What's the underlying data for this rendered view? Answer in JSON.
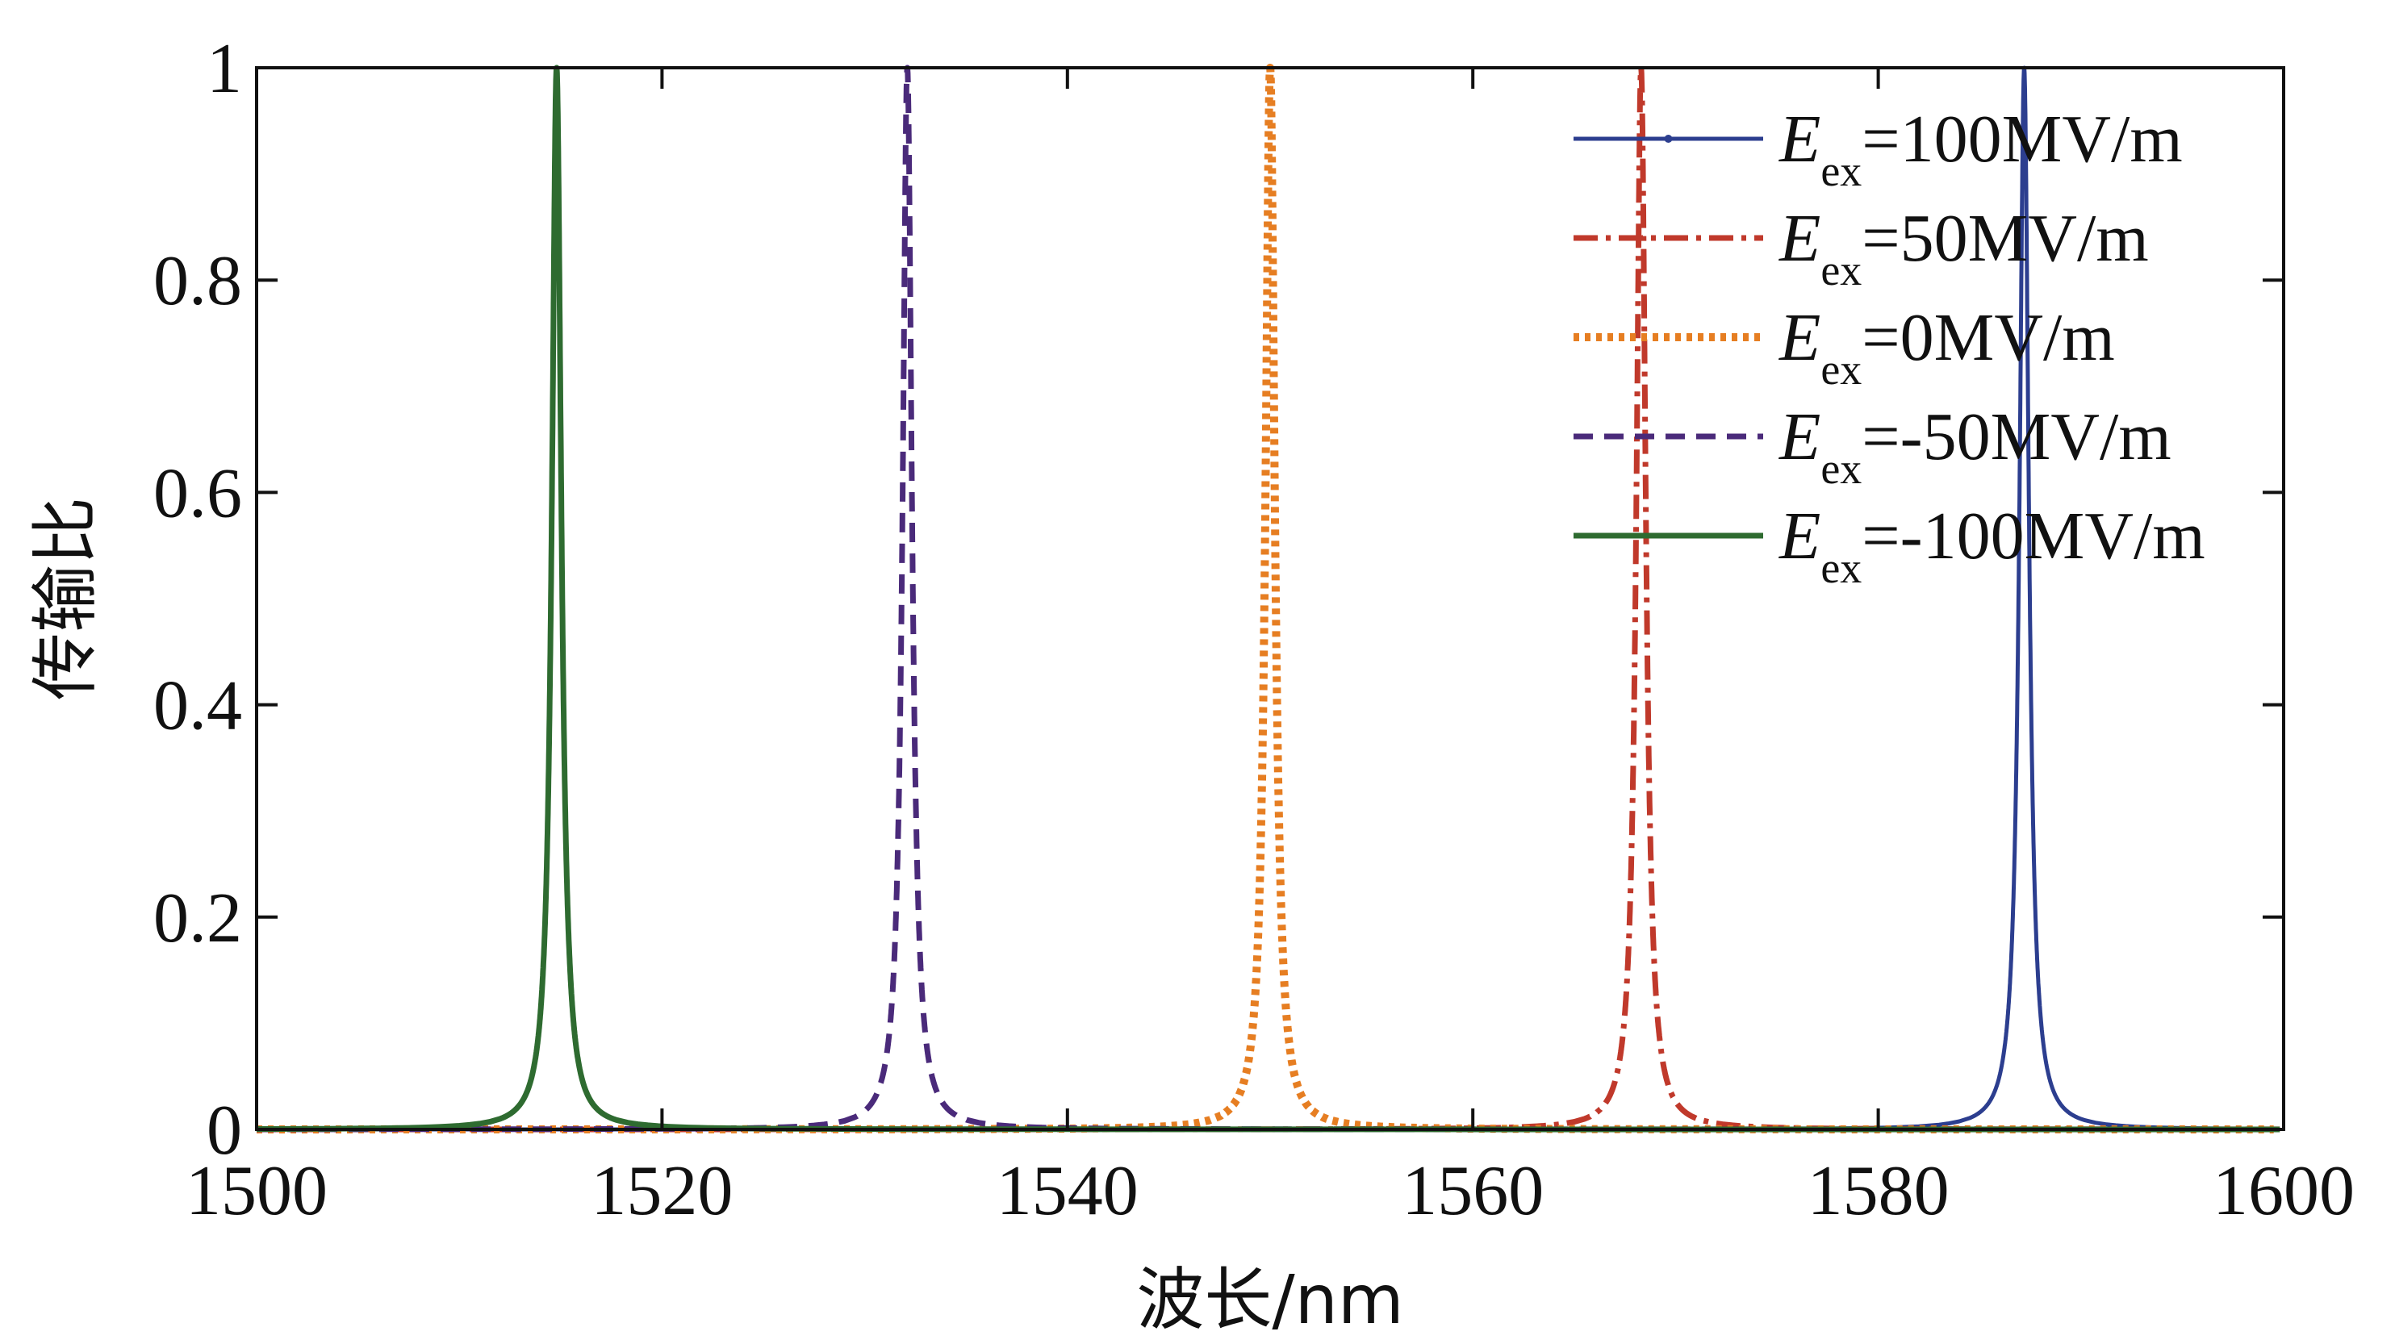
{
  "chart_data": {
    "type": "line",
    "title": "",
    "xlabel": "波长/nm",
    "ylabel": "传输比",
    "xlim": [
      1500,
      1600
    ],
    "ylim": [
      0,
      1
    ],
    "xticks": [
      1500,
      1520,
      1540,
      1560,
      1580,
      1600
    ],
    "xtick_labels": [
      "1500",
      "1520",
      "1540",
      "1560",
      "1580",
      "1600"
    ],
    "yticks": [
      0,
      0.2,
      0.4,
      0.6,
      0.8,
      1
    ],
    "ytick_labels": [
      "0",
      "0.2",
      "0.4",
      "0.6",
      "0.8",
      "1"
    ],
    "grid": false,
    "legend_position": "top-right",
    "legend_symbol": "E",
    "legend_subscript": "ex",
    "series": [
      {
        "name": "=100MV/m",
        "peak_x": 1587.2,
        "peak_y": 1.0,
        "color": "#2c3e8f",
        "style": "solid-marker"
      },
      {
        "name": "=50MV/m",
        "peak_x": 1568.3,
        "peak_y": 1.0,
        "color": "#c0392b",
        "style": "dash-dot"
      },
      {
        "name": "=0MV/m",
        "peak_x": 1550.0,
        "peak_y": 1.0,
        "color": "#e67e22",
        "style": "dotted"
      },
      {
        "name": "=-50MV/m",
        "peak_x": 1532.1,
        "peak_y": 1.0,
        "color": "#4a2a7a",
        "style": "dashed"
      },
      {
        "name": "=-100MV/m",
        "peak_x": 1514.8,
        "peak_y": 1.0,
        "color": "#2e6b30",
        "style": "solid"
      }
    ]
  }
}
